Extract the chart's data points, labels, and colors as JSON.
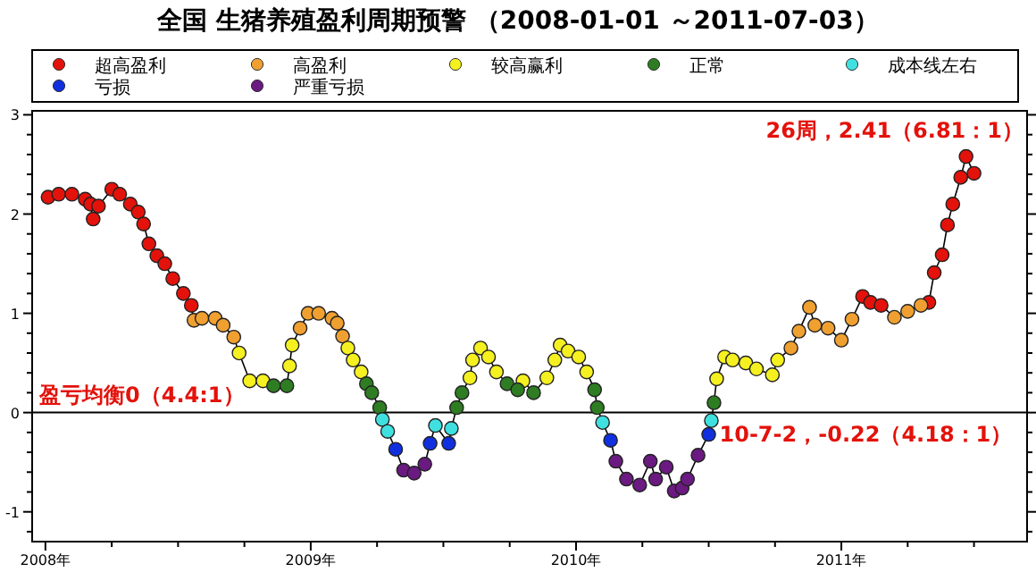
{
  "chart_data": {
    "type": "scatter",
    "title": "全国 生猪养殖盈利周期预警 （2008-01-01 ～2011-07-03）",
    "x": [
      2008.01,
      2008.05,
      2008.1,
      2008.15,
      2008.17,
      2008.18,
      2008.2,
      2008.25,
      2008.28,
      2008.32,
      2008.35,
      2008.37,
      2008.39,
      2008.42,
      2008.45,
      2008.48,
      2008.52,
      2008.55,
      2008.56,
      2008.59,
      2008.64,
      2008.67,
      2008.71,
      2008.73,
      2008.77,
      2008.82,
      2008.86,
      2008.91,
      2008.92,
      2008.93,
      2008.96,
      2008.99,
      2009.03,
      2009.08,
      2009.1,
      2009.12,
      2009.14,
      2009.16,
      2009.19,
      2009.21,
      2009.23,
      2009.26,
      2009.27,
      2009.29,
      2009.32,
      2009.35,
      2009.39,
      2009.43,
      2009.45,
      2009.47,
      2009.52,
      2009.53,
      2009.55,
      2009.57,
      2009.6,
      2009.61,
      2009.64,
      2009.67,
      2009.7,
      2009.74,
      2009.78,
      2009.8,
      2009.84,
      2009.89,
      2009.92,
      2009.94,
      2009.97,
      2010.01,
      2010.04,
      2010.07,
      2010.08,
      2010.1,
      2010.13,
      2010.15,
      2010.19,
      2010.24,
      2010.28,
      2010.3,
      2010.34,
      2010.37,
      2010.4,
      2010.42,
      2010.46,
      2010.5,
      2010.51,
      2010.52,
      2010.53,
      2010.56,
      2010.59,
      2010.64,
      2010.68,
      2010.74,
      2010.76,
      2010.81,
      2010.84,
      2010.88,
      2010.9,
      2010.95,
      2011.0,
      2011.04,
      2011.08,
      2011.11,
      2011.15,
      2011.2,
      2011.25,
      2011.3,
      2011.33,
      2011.35,
      2011.38,
      2011.4,
      2011.42,
      2011.45,
      2011.47,
      2011.5
    ],
    "series": [
      {
        "type": "line",
        "color": "#000000",
        "marker": "none",
        "values": [
          2.17,
          2.2,
          2.2,
          2.15,
          2.1,
          1.95,
          2.08,
          2.25,
          2.2,
          2.1,
          2.02,
          1.9,
          1.7,
          1.58,
          1.5,
          1.35,
          1.2,
          1.08,
          0.93,
          0.95,
          0.95,
          0.88,
          0.76,
          0.6,
          0.32,
          0.32,
          0.27,
          0.27,
          0.47,
          0.68,
          0.85,
          1.0,
          1.0,
          0.95,
          0.9,
          0.77,
          0.65,
          0.53,
          0.41,
          0.29,
          0.2,
          0.05,
          -0.07,
          -0.19,
          -0.37,
          -0.58,
          -0.61,
          -0.52,
          -0.31,
          -0.13,
          -0.31,
          -0.16,
          0.05,
          0.2,
          0.35,
          0.53,
          0.65,
          0.56,
          0.41,
          0.29,
          0.23,
          0.32,
          0.2,
          0.35,
          0.53,
          0.68,
          0.62,
          0.56,
          0.41,
          0.23,
          0.05,
          -0.1,
          -0.28,
          -0.49,
          -0.67,
          -0.73,
          -0.49,
          -0.67,
          -0.55,
          -0.79,
          -0.76,
          -0.67,
          -0.43,
          -0.22,
          -0.08,
          0.1,
          0.34,
          0.56,
          0.53,
          0.5,
          0.44,
          0.38,
          0.53,
          0.65,
          0.82,
          1.06,
          0.88,
          0.85,
          0.73,
          0.94,
          1.17,
          1.11,
          1.08,
          0.96,
          1.02,
          1.08,
          1.11,
          1.41,
          1.59,
          1.89,
          2.1,
          2.37,
          2.58,
          2.41
        ]
      },
      {
        "name": "超高盈利",
        "color": "#e3120b",
        "x": [
          2008.01,
          2008.05,
          2008.1,
          2008.15,
          2008.17,
          2008.18,
          2008.2,
          2008.25,
          2008.28,
          2008.32,
          2008.35,
          2008.37,
          2008.39,
          2008.42,
          2008.45,
          2008.48,
          2008.52,
          2008.55,
          2011.08,
          2011.11,
          2011.15,
          2011.33,
          2011.35,
          2011.38,
          2011.4,
          2011.42,
          2011.45,
          2011.47,
          2011.5
        ],
        "values": [
          2.17,
          2.2,
          2.2,
          2.15,
          2.1,
          1.95,
          2.08,
          2.25,
          2.2,
          2.1,
          2.02,
          1.9,
          1.7,
          1.58,
          1.5,
          1.35,
          1.2,
          1.08,
          1.17,
          1.11,
          1.08,
          1.11,
          1.41,
          1.59,
          1.89,
          2.1,
          2.37,
          2.58,
          2.41
        ]
      },
      {
        "name": "高盈利",
        "color": "#f0a030",
        "x": [
          2008.56,
          2008.59,
          2008.64,
          2008.67,
          2008.71,
          2008.96,
          2008.99,
          2009.03,
          2009.08,
          2009.1,
          2009.12,
          2010.81,
          2010.84,
          2010.88,
          2010.9,
          2010.95,
          2011.0,
          2011.04,
          2011.2,
          2011.25,
          2011.3
        ],
        "values": [
          0.93,
          0.95,
          0.95,
          0.88,
          0.76,
          0.85,
          1.0,
          1.0,
          0.95,
          0.9,
          0.77,
          0.65,
          0.82,
          1.06,
          0.88,
          0.85,
          0.73,
          0.94,
          0.96,
          1.02,
          1.08
        ]
      },
      {
        "name": "较高赢利",
        "color": "#f5f020",
        "x": [
          2008.73,
          2008.77,
          2008.82,
          2008.92,
          2008.93,
          2009.14,
          2009.16,
          2009.19,
          2009.6,
          2009.61,
          2009.64,
          2009.67,
          2009.7,
          2009.8,
          2009.89,
          2009.92,
          2009.94,
          2009.97,
          2010.01,
          2010.04,
          2010.53,
          2010.56,
          2010.59,
          2010.64,
          2010.68,
          2010.74,
          2010.76
        ],
        "values": [
          0.6,
          0.32,
          0.32,
          0.47,
          0.68,
          0.65,
          0.53,
          0.41,
          0.35,
          0.53,
          0.65,
          0.56,
          0.41,
          0.32,
          0.35,
          0.53,
          0.68,
          0.62,
          0.56,
          0.41,
          0.34,
          0.56,
          0.53,
          0.5,
          0.44,
          0.38,
          0.53
        ]
      },
      {
        "name": "正常",
        "color": "#2e7d22",
        "x": [
          2008.86,
          2008.91,
          2009.21,
          2009.23,
          2009.26,
          2009.55,
          2009.57,
          2009.74,
          2009.78,
          2009.84,
          2010.07,
          2010.08,
          2010.52
        ],
        "values": [
          0.27,
          0.27,
          0.29,
          0.2,
          0.05,
          0.05,
          0.2,
          0.29,
          0.23,
          0.2,
          0.23,
          0.05,
          0.1
        ]
      },
      {
        "name": "成本线左右",
        "color": "#40e0e0",
        "x": [
          2009.27,
          2009.29,
          2009.47,
          2009.53,
          2010.1,
          2010.51
        ],
        "values": [
          -0.07,
          -0.19,
          -0.13,
          -0.16,
          -0.1,
          -0.08
        ]
      },
      {
        "name": "亏损",
        "color": "#1030e0",
        "x": [
          2009.32,
          2009.45,
          2009.52,
          2010.13,
          2010.5
        ],
        "values": [
          -0.37,
          -0.31,
          -0.31,
          -0.28,
          -0.22
        ]
      },
      {
        "name": "严重亏损",
        "color": "#6a1a80",
        "x": [
          2009.35,
          2009.39,
          2009.43,
          2010.15,
          2010.19,
          2010.24,
          2010.28,
          2010.3,
          2010.34,
          2010.37,
          2010.4,
          2010.42,
          2010.46
        ],
        "values": [
          -0.58,
          -0.61,
          -0.52,
          -0.49,
          -0.67,
          -0.73,
          -0.49,
          -0.67,
          -0.55,
          -0.79,
          -0.76,
          -0.67,
          -0.43
        ]
      }
    ],
    "marker": "circle",
    "xlim": [
      2007.95,
      2011.7
    ],
    "xticks": [
      {
        "value": 2008,
        "label": "2008年"
      },
      {
        "value": 2008.25,
        "label": null
      },
      {
        "value": 2008.5,
        "label": null
      },
      {
        "value": 2008.75,
        "label": null
      },
      {
        "value": 2009,
        "label": "2009年"
      },
      {
        "value": 2009.25,
        "label": null
      },
      {
        "value": 2009.5,
        "label": null
      },
      {
        "value": 2009.75,
        "label": null
      },
      {
        "value": 2010,
        "label": "2010年"
      },
      {
        "value": 2010.25,
        "label": null
      },
      {
        "value": 2010.5,
        "label": null
      },
      {
        "value": 2010.75,
        "label": null
      },
      {
        "value": 2011,
        "label": "2011年"
      },
      {
        "value": 2011.25,
        "label": null
      },
      {
        "value": 2011.5,
        "label": null
      }
    ],
    "ylim": [
      -1.3,
      3.04
    ],
    "yticks": [
      {
        "value": -1.2,
        "label": null
      },
      -1,
      {
        "value": -0.8,
        "label": null
      },
      {
        "value": -0.6,
        "label": null
      },
      {
        "value": -0.4,
        "label": null
      },
      {
        "value": -0.2,
        "label": null
      },
      0,
      {
        "value": 0.2,
        "label": null
      },
      {
        "value": 0.4,
        "label": null
      },
      {
        "value": 0.6,
        "label": null
      },
      {
        "value": 0.8,
        "label": null
      },
      1,
      {
        "value": 1.2,
        "label": null
      },
      {
        "value": 1.4,
        "label": null
      },
      {
        "value": 1.6,
        "label": null
      },
      {
        "value": 1.8,
        "label": null
      },
      2,
      {
        "value": 2.2,
        "label": null
      },
      {
        "value": 2.4,
        "label": null
      },
      {
        "value": 2.6,
        "label": null
      },
      {
        "value": 2.8,
        "label": null
      },
      3
    ],
    "ref_lines": [
      {
        "axis": "y",
        "value": 0,
        "label": "盈亏均衡0（4.4:1）",
        "color": "#000000"
      }
    ],
    "annotations": [
      {
        "text": "26周，2.41（6.81：1）",
        "x": 2011.5,
        "y": 2.41
      },
      {
        "text": "10-7-2，-0.22（4.18：1）",
        "x": 2010.5,
        "y": -0.22
      }
    ],
    "legend": "top",
    "grid": false
  }
}
